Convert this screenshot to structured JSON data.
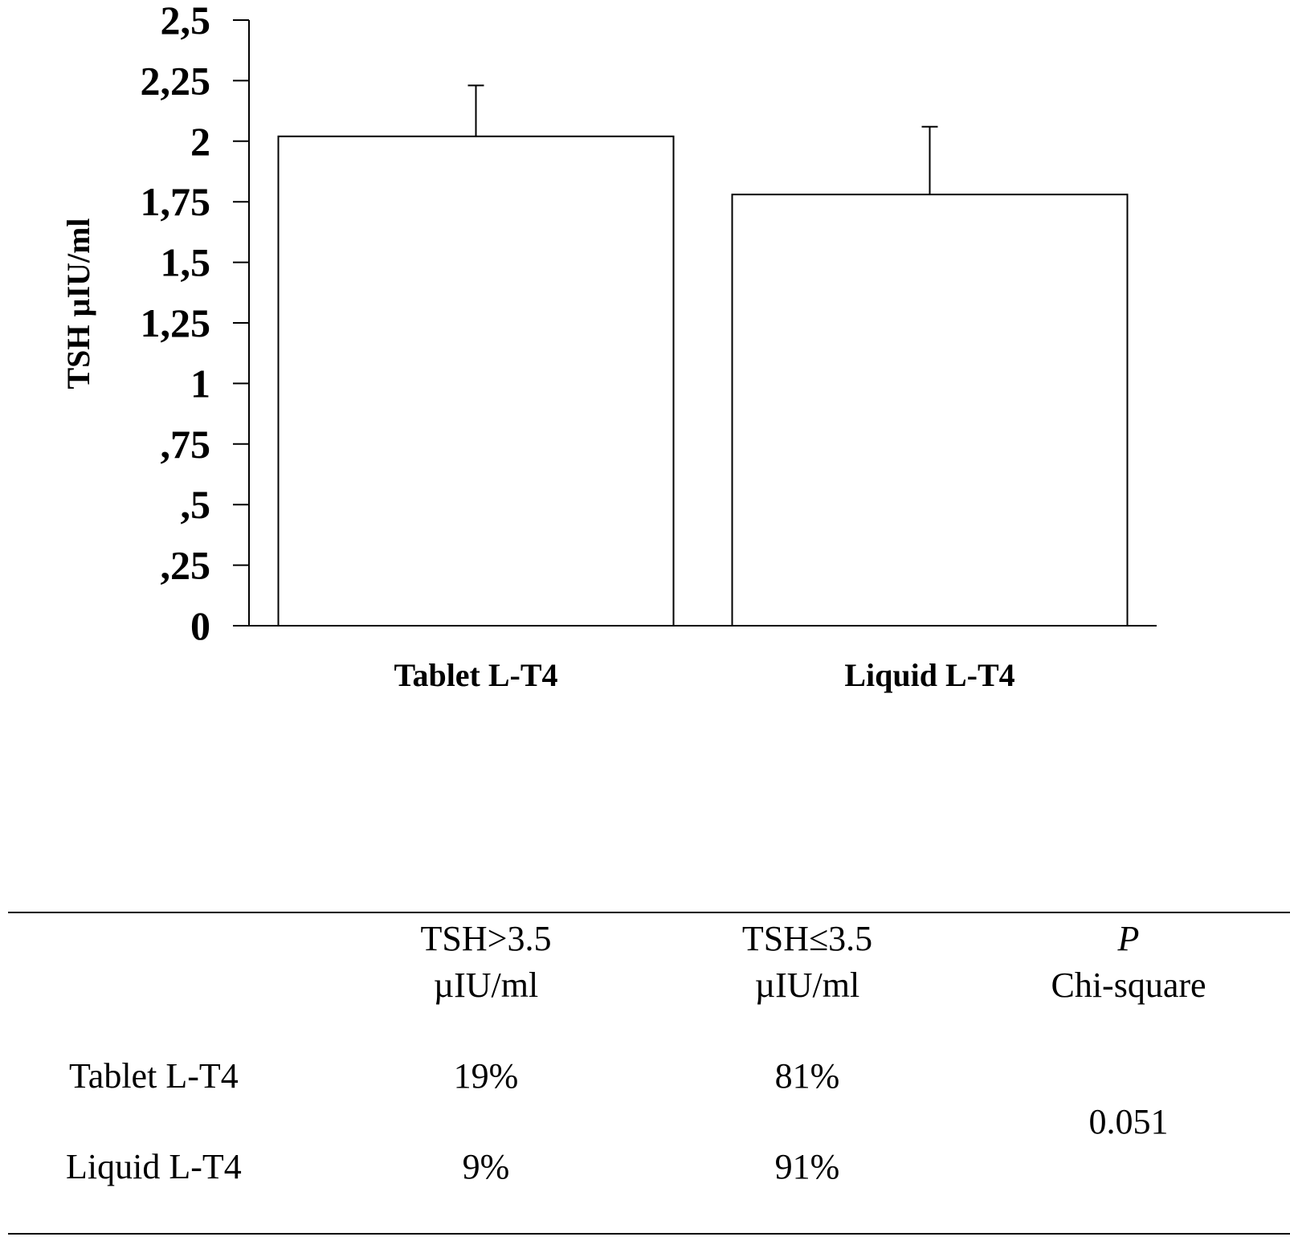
{
  "chart_data": {
    "type": "bar",
    "categories": [
      "Tablet L-T4",
      "Liquid L-T4"
    ],
    "values": [
      2.02,
      1.78
    ],
    "error": [
      0.21,
      0.28
    ],
    "ylabel": "TSH µIU/ml",
    "ylim": [
      0,
      2.5
    ],
    "yticks": [
      "0",
      ",25",
      ",5",
      ",75",
      "1",
      "1,25",
      "1,5",
      "1,75",
      "2",
      "2,25",
      "2,5"
    ],
    "bar_fill": "#ffffff",
    "bar_stroke": "#000000",
    "grid": false,
    "legend": "none"
  },
  "table": {
    "headers": {
      "col1": "TSH>3.5",
      "col1_unit": "µIU/ml",
      "col2": "TSH≤3.5",
      "col2_unit": "µIU/ml",
      "col3": "P",
      "col3_sub": "Chi-square"
    },
    "rows": [
      {
        "label": "Tablet L-T4",
        "col1": "19%",
        "col2": "81%"
      },
      {
        "label": "Liquid L-T4",
        "col1": "9%",
        "col2": "91%"
      }
    ],
    "p_value": "0.051"
  }
}
